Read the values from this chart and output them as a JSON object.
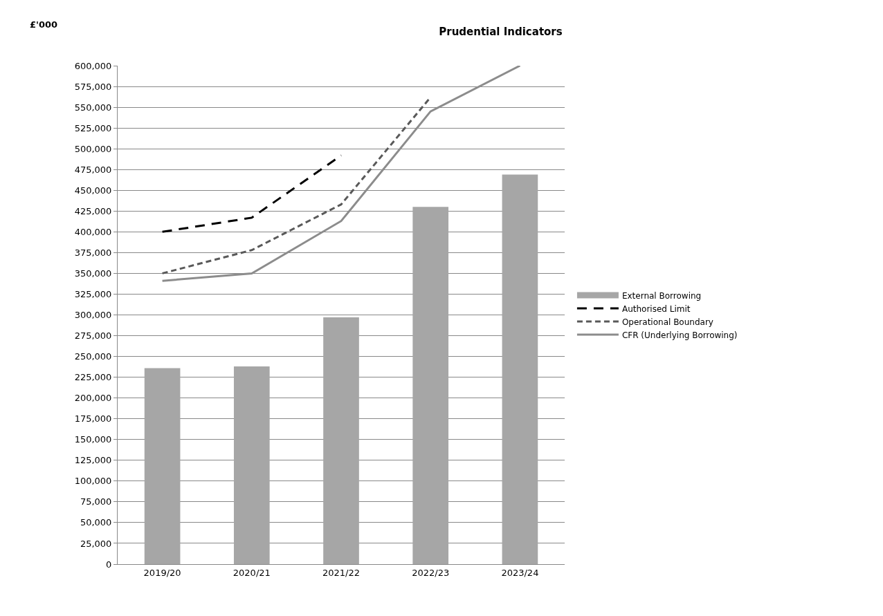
{
  "chart_data": {
    "type": "bar",
    "title": "Prudential Indicators",
    "ylabel": "£'000",
    "categories": [
      "2019/20",
      "2020/21",
      "2021/22",
      "2022/23",
      "2023/24"
    ],
    "series": [
      {
        "name": "External Borrowing",
        "color": "#a6a6a6",
        "values": [
          236000,
          238000,
          297000,
          430000,
          469000
        ]
      },
      {
        "name": "Authorised Limit",
        "type": "line",
        "color": "#000000",
        "line_style": "dashed",
        "values": [
          400000,
          417000,
          492000,
          null,
          null
        ]
      },
      {
        "name": "Operational Boundary",
        "type": "line",
        "color": "#595959",
        "line_style": "dashed",
        "values": [
          350000,
          378000,
          433000,
          562000,
          null
        ]
      },
      {
        "name": "CFR (Underlying Borrowing)",
        "type": "line",
        "color": "#8c8c8c",
        "line_style": "solid",
        "values": [
          341000,
          350000,
          413000,
          545000,
          600000
        ]
      }
    ],
    "ylim": [
      0,
      600000
    ],
    "yticks": [
      {
        "value": 0,
        "label": "0"
      },
      {
        "value": 25000,
        "label": "25,000"
      },
      {
        "value": 50000,
        "label": "50,000"
      },
      {
        "value": 75000,
        "label": "75,000"
      },
      {
        "value": 100000,
        "label": "100,000"
      },
      {
        "value": 125000,
        "label": "125,000"
      },
      {
        "value": 150000,
        "label": "150,000"
      },
      {
        "value": 175000,
        "label": "175,000"
      },
      {
        "value": 200000,
        "label": "200,000"
      },
      {
        "value": 225000,
        "label": "225,000"
      },
      {
        "value": 250000,
        "label": "250,000"
      },
      {
        "value": 275000,
        "label": "275,000"
      },
      {
        "value": 300000,
        "label": "300,000"
      },
      {
        "value": 325000,
        "label": "325,000"
      },
      {
        "value": 350000,
        "label": "350,000"
      },
      {
        "value": 375000,
        "label": "375,000"
      },
      {
        "value": 400000,
        "label": "400,000"
      },
      {
        "value": 425000,
        "label": "425,000"
      },
      {
        "value": 450000,
        "label": "450,000"
      },
      {
        "value": 475000,
        "label": "475,000"
      },
      {
        "value": 500000,
        "label": "500,000"
      },
      {
        "value": 525000,
        "label": "525,000"
      },
      {
        "value": 550000,
        "label": "550,000"
      },
      {
        "value": 575000,
        "label": "575,000"
      },
      {
        "value": 600000,
        "label": "600,000"
      }
    ],
    "grid": "y",
    "legend": "right",
    "marker": "none"
  }
}
